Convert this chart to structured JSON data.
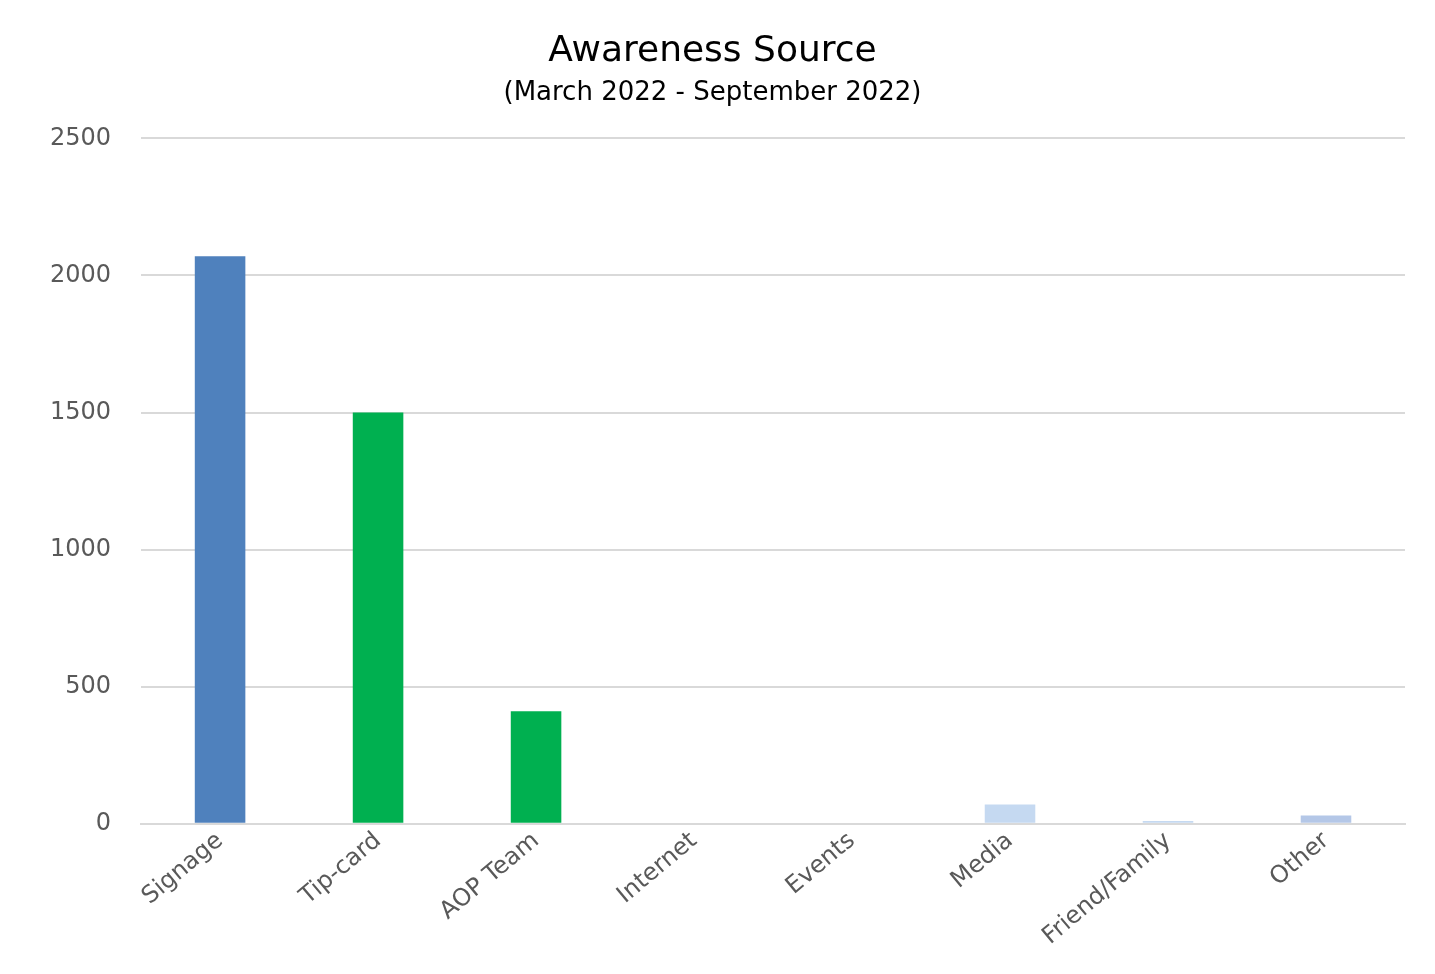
{
  "chart_data": {
    "type": "bar",
    "title": "Awareness Source",
    "subtitle": "(March 2022 - September 2022)",
    "categories": [
      "Signage",
      "Tip-card",
      "AOP Team",
      "Internet",
      "Events",
      "Media",
      "Friend/Family",
      "Other"
    ],
    "values": [
      2070,
      1500,
      410,
      0,
      0,
      70,
      10,
      30
    ],
    "colors": [
      "#4f81bd",
      "#00b050",
      "#00b050",
      "#c5d9f1",
      "#c5d9f1",
      "#c5d9f1",
      "#c5d9f1",
      "#b4c7e7"
    ],
    "ylim": [
      0,
      2500
    ],
    "yticks": [
      0,
      500,
      1000,
      1500,
      2000,
      2500
    ],
    "grid": "y",
    "legend": false
  }
}
